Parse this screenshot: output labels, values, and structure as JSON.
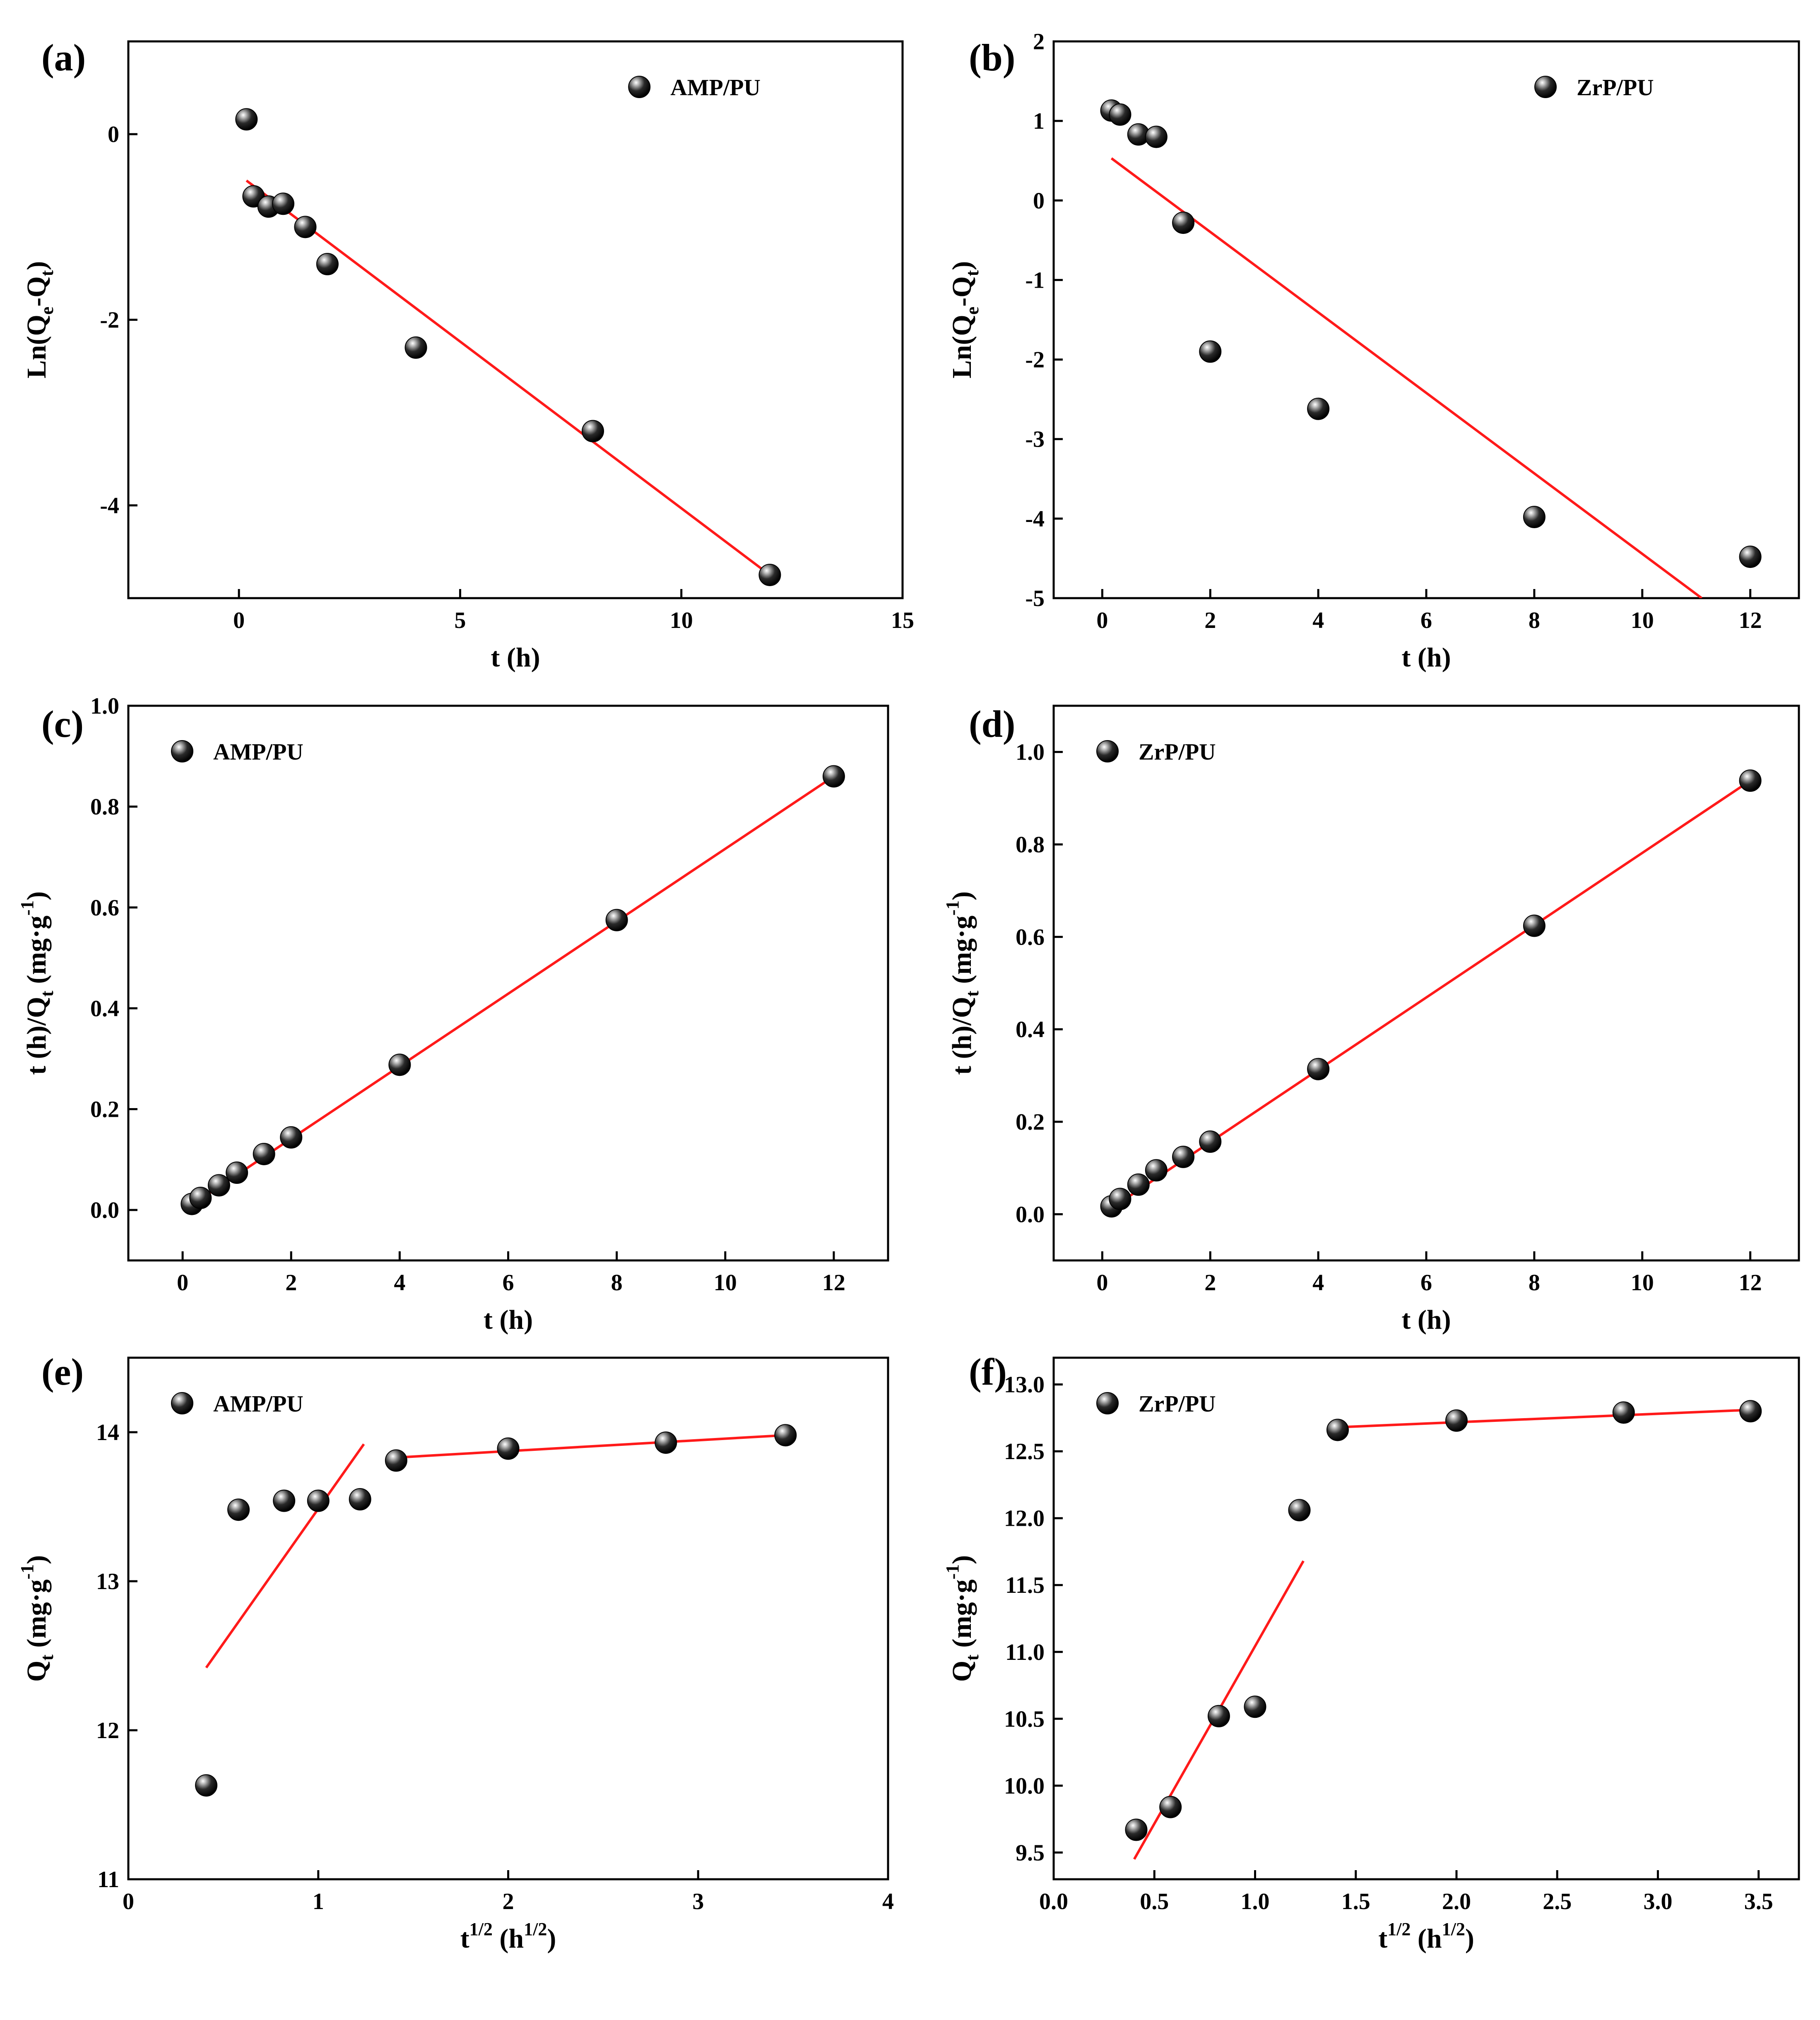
{
  "chart_data": [
    {
      "panel": "(a)",
      "type": "scatter",
      "xlabel": "t (h)",
      "ylabel": "Ln(Qe-Qt)",
      "xlim": [
        -2.5,
        15
      ],
      "ylim": [
        -5,
        1
      ],
      "xticks": [
        0,
        5,
        10,
        15
      ],
      "yticks": [
        0,
        -2,
        -4
      ],
      "grid": false,
      "legend_position": "top-right",
      "series": [
        {
          "name": "AMP/PU",
          "kind": "points",
          "x": [
            0.17,
            0.33,
            0.67,
            1,
            1.5,
            2,
            4,
            8,
            12
          ],
          "y": [
            0.16,
            -0.67,
            -0.78,
            -0.75,
            -1.0,
            -1.4,
            -2.3,
            -3.2,
            -4.75
          ]
        },
        {
          "kind": "fit",
          "x": [
            0.17,
            12
          ],
          "y": [
            -0.5,
            -4.75
          ]
        }
      ]
    },
    {
      "panel": "(b)",
      "type": "scatter",
      "xlabel": "t (h)",
      "ylabel": "Ln(Qe-Qt)",
      "xlim": [
        -0.9,
        12.9
      ],
      "ylim": [
        -5,
        2
      ],
      "xticks": [
        0,
        2,
        4,
        6,
        8,
        10,
        12
      ],
      "yticks": [
        2,
        1,
        0,
        -1,
        -2,
        -3,
        -4,
        -5
      ],
      "grid": false,
      "legend_position": "top-right",
      "series": [
        {
          "name": "ZrP/PU",
          "kind": "points",
          "x": [
            0.17,
            0.33,
            0.67,
            1,
            1.5,
            2,
            4,
            8,
            12
          ],
          "y": [
            1.13,
            1.08,
            0.83,
            0.8,
            -0.28,
            -1.9,
            -2.62,
            -3.98,
            -4.48
          ]
        },
        {
          "kind": "fit",
          "x": [
            0.17,
            11.1
          ],
          "y": [
            0.53,
            -5.0
          ]
        }
      ]
    },
    {
      "panel": "(c)",
      "type": "scatter",
      "xlabel": "t (h)",
      "ylabel": "t (h)/Qt (mg·g-1)",
      "xlim": [
        -1,
        13
      ],
      "ylim": [
        -0.1,
        1.0
      ],
      "xticks": [
        0,
        2,
        4,
        6,
        8,
        10,
        12
      ],
      "yticks": [
        0.0,
        0.2,
        0.4,
        0.6,
        0.8,
        1.0
      ],
      "grid": false,
      "legend_position": "top-left",
      "series": [
        {
          "name": "AMP/PU",
          "kind": "points",
          "x": [
            0.17,
            0.33,
            0.67,
            1,
            1.5,
            2,
            4,
            8,
            12
          ],
          "y": [
            0.012,
            0.024,
            0.049,
            0.074,
            0.111,
            0.144,
            0.288,
            0.575,
            0.86
          ]
        },
        {
          "kind": "fit",
          "x": [
            0.17,
            12
          ],
          "y": [
            0.01,
            0.86
          ]
        }
      ]
    },
    {
      "panel": "(d)",
      "type": "scatter",
      "xlabel": "t (h)",
      "ylabel": "t (h)/Qt (mg·g-1)",
      "xlim": [
        -0.9,
        12.9
      ],
      "ylim": [
        -0.1,
        1.1
      ],
      "xticks": [
        0,
        2,
        4,
        6,
        8,
        10,
        12
      ],
      "yticks": [
        0.0,
        0.2,
        0.4,
        0.6,
        0.8,
        1.0
      ],
      "grid": false,
      "legend_position": "top-left",
      "series": [
        {
          "name": "ZrP/PU",
          "kind": "points",
          "x": [
            0.17,
            0.33,
            0.67,
            1,
            1.5,
            2,
            4,
            8,
            12
          ],
          "y": [
            0.017,
            0.033,
            0.064,
            0.095,
            0.124,
            0.157,
            0.314,
            0.624,
            0.938
          ]
        },
        {
          "kind": "fit",
          "x": [
            0.17,
            12
          ],
          "y": [
            0.013,
            0.938
          ]
        }
      ]
    },
    {
      "panel": "(e)",
      "type": "scatter",
      "xlabel": "t1/2 (h1/2)",
      "ylabel": "Qt (mg·g-1)",
      "xlim": [
        0,
        4
      ],
      "ylim": [
        11,
        14.5
      ],
      "xticks": [
        0,
        1,
        2,
        3,
        4
      ],
      "yticks": [
        11,
        12,
        13,
        14
      ],
      "grid": false,
      "legend_position": "top-left",
      "series": [
        {
          "name": "AMP/PU",
          "kind": "points",
          "x": [
            0.41,
            0.58,
            0.82,
            1.0,
            1.22,
            1.41,
            2.0,
            2.83,
            3.46
          ],
          "y": [
            11.63,
            13.48,
            13.54,
            13.54,
            13.55,
            13.81,
            13.89,
            13.93,
            13.98
          ]
        },
        {
          "kind": "fit",
          "x": [
            0.41,
            1.24
          ],
          "y": [
            12.42,
            13.92
          ]
        },
        {
          "kind": "fit",
          "x": [
            1.41,
            3.46
          ],
          "y": [
            13.83,
            13.98
          ]
        }
      ]
    },
    {
      "panel": "(f)",
      "type": "scatter",
      "xlabel": "t1/2 (h1/2)",
      "ylabel": "Qt (mg·g-1)",
      "xlim": [
        0,
        3.7
      ],
      "ylim": [
        9.3,
        13.2
      ],
      "xticks": [
        0.0,
        0.5,
        1.0,
        1.5,
        2.0,
        2.5,
        3.0,
        3.5
      ],
      "yticks": [
        9.5,
        10.0,
        10.5,
        11.0,
        11.5,
        12.0,
        12.5,
        13.0
      ],
      "grid": false,
      "legend_position": "top-left",
      "series": [
        {
          "name": "ZrP/PU",
          "kind": "points",
          "x": [
            0.41,
            0.58,
            0.82,
            1.0,
            1.22,
            1.41,
            2.0,
            2.83,
            3.46
          ],
          "y": [
            9.67,
            9.84,
            10.52,
            10.59,
            12.06,
            12.66,
            12.73,
            12.79,
            12.8
          ]
        },
        {
          "kind": "fit",
          "x": [
            0.4,
            1.24
          ],
          "y": [
            9.45,
            11.68
          ]
        },
        {
          "kind": "fit",
          "x": [
            1.41,
            3.46
          ],
          "y": [
            12.68,
            12.81
          ]
        }
      ]
    }
  ]
}
